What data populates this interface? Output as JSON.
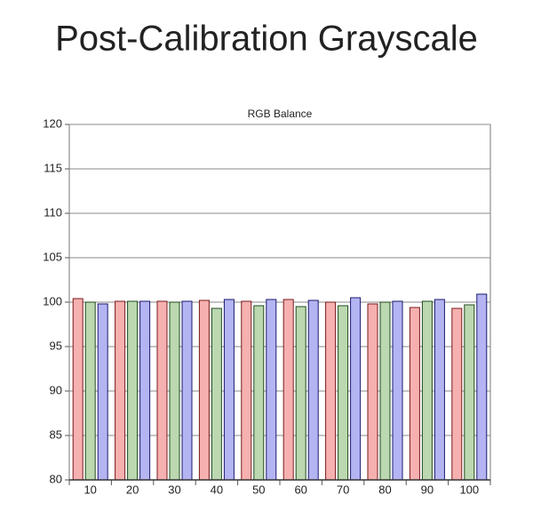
{
  "chart_data": {
    "type": "bar",
    "title": "Post-Calibration Grayscale",
    "subtitle": "RGB Balance",
    "categories": [
      "10",
      "20",
      "30",
      "40",
      "50",
      "60",
      "70",
      "80",
      "90",
      "100"
    ],
    "series": [
      {
        "color": "#f6b0b0",
        "edge": "#7a1a1a",
        "values": [
          100.4,
          100.1,
          100.1,
          100.2,
          100.1,
          100.3,
          100.0,
          99.8,
          99.4,
          99.3
        ]
      },
      {
        "color": "#bcd8b0",
        "edge": "#1f4a1f",
        "values": [
          100.0,
          100.1,
          100.0,
          99.3,
          99.6,
          99.5,
          99.6,
          100.0,
          100.1,
          99.7
        ]
      },
      {
        "color": "#b4b4f2",
        "edge": "#1a1a70",
        "values": [
          99.8,
          100.1,
          100.1,
          100.3,
          100.3,
          100.2,
          100.5,
          100.1,
          100.3,
          100.9
        ]
      }
    ],
    "ylim": [
      80,
      120
    ],
    "yticks": [
      80,
      85,
      90,
      95,
      100,
      105,
      110,
      115,
      120
    ],
    "grid": true
  }
}
